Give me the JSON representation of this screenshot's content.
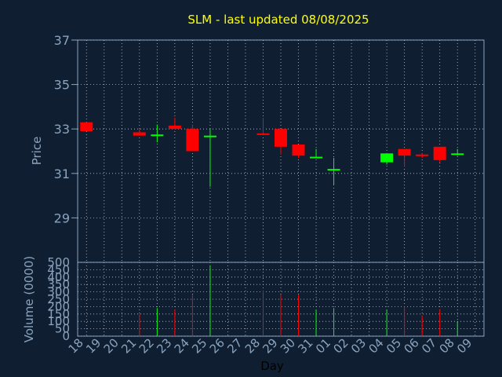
{
  "chart_data": [
    {
      "type": "candlestick",
      "title": "SLM - last updated 08/08/2025",
      "ylabel": "Price",
      "xlabel": "Day",
      "ylim": [
        27,
        37
      ],
      "yticks": [
        "37",
        "35",
        "33",
        "31",
        "29"
      ],
      "grid": true,
      "x": [
        "18",
        "19",
        "20",
        "21",
        "22",
        "23",
        "24",
        "25",
        "26",
        "27",
        "28",
        "29",
        "30",
        "31",
        "01",
        "02",
        "03",
        "04",
        "05",
        "06",
        "07",
        "08",
        "09"
      ],
      "candles": [
        {
          "x": "18",
          "open": 32.9,
          "high": 33.3,
          "low": 32.9,
          "close": 33.3,
          "color": "#ff0000"
        },
        {
          "x": "21",
          "open": 32.7,
          "high": 33.0,
          "low": 32.7,
          "close": 32.85,
          "color": "#ff0000"
        },
        {
          "x": "22",
          "open": 32.75,
          "high": 33.2,
          "low": 32.4,
          "close": 32.75,
          "color": "#00ff00"
        },
        {
          "x": "23",
          "open": 33.0,
          "high": 33.5,
          "low": 33.0,
          "close": 33.15,
          "color": "#ff0000"
        },
        {
          "x": "24",
          "open": 32.0,
          "high": 33.2,
          "low": 32.0,
          "close": 33.0,
          "color": "#ff0000"
        },
        {
          "x": "25",
          "open": 32.7,
          "high": 33.0,
          "low": 30.4,
          "close": 32.7,
          "color": "#00ff00"
        },
        {
          "x": "28",
          "open": 32.8,
          "high": 33.5,
          "low": 32.8,
          "close": 32.8,
          "color": "#ff0000"
        },
        {
          "x": "29",
          "open": 32.2,
          "high": 33.0,
          "low": 31.85,
          "close": 33.0,
          "color": "#ff0000"
        },
        {
          "x": "30",
          "open": 31.8,
          "high": 32.3,
          "low": 31.7,
          "close": 32.3,
          "color": "#ff0000"
        },
        {
          "x": "31",
          "open": 31.75,
          "high": 32.1,
          "low": 31.7,
          "close": 31.75,
          "color": "#00ff00"
        },
        {
          "x": "01",
          "open": 31.2,
          "high": 31.7,
          "low": 30.5,
          "close": 31.2,
          "color": "#00ff00"
        },
        {
          "x": "04",
          "open": 31.5,
          "high": 31.9,
          "low": 31.4,
          "close": 31.9,
          "color": "#00ff00"
        },
        {
          "x": "05",
          "open": 31.8,
          "high": 32.1,
          "low": 31.3,
          "close": 32.1,
          "color": "#ff0000"
        },
        {
          "x": "06",
          "open": 31.8,
          "high": 31.9,
          "low": 31.7,
          "close": 31.85,
          "color": "#ff0000"
        },
        {
          "x": "07",
          "open": 31.6,
          "high": 32.2,
          "low": 31.5,
          "close": 32.2,
          "color": "#ff0000"
        },
        {
          "x": "08",
          "open": 31.85,
          "high": 32.1,
          "low": 31.8,
          "close": 31.9,
          "color": "#00ff00"
        }
      ]
    },
    {
      "type": "bar",
      "ylabel": "Volume (0000)",
      "ylim": [
        0,
        500
      ],
      "yticks": [
        "500",
        "450",
        "400",
        "350",
        "300",
        "250",
        "200",
        "150",
        "100",
        "50",
        "0"
      ],
      "grid": true,
      "x": [
        "18",
        "19",
        "20",
        "21",
        "22",
        "23",
        "24",
        "25",
        "26",
        "27",
        "28",
        "29",
        "30",
        "31",
        "01",
        "02",
        "03",
        "04",
        "05",
        "06",
        "07",
        "08",
        "09"
      ],
      "volumes": [
        {
          "x": "21",
          "value": 150,
          "color": "#ff0000"
        },
        {
          "x": "22",
          "value": 190,
          "color": "#00ff00"
        },
        {
          "x": "23",
          "value": 180,
          "color": "#ff0000"
        },
        {
          "x": "24",
          "value": 280,
          "color": "#ff0000"
        },
        {
          "x": "25",
          "value": 480,
          "color": "#00ff00"
        },
        {
          "x": "28",
          "value": 310,
          "color": "#ff0000"
        },
        {
          "x": "29",
          "value": 280,
          "color": "#ff0000"
        },
        {
          "x": "30",
          "value": 280,
          "color": "#ff0000"
        },
        {
          "x": "31",
          "value": 180,
          "color": "#00ff00"
        },
        {
          "x": "01",
          "value": 190,
          "color": "#00ff00"
        },
        {
          "x": "04",
          "value": 180,
          "color": "#00ff00"
        },
        {
          "x": "05",
          "value": 200,
          "color": "#ff0000"
        },
        {
          "x": "06",
          "value": 140,
          "color": "#ff0000"
        },
        {
          "x": "07",
          "value": 180,
          "color": "#ff0000"
        },
        {
          "x": "08",
          "value": 100,
          "color": "#00ff00"
        }
      ]
    }
  ],
  "colors": {
    "background": "#0f1f31",
    "frame": "#8aa3be",
    "grid": "#b8c6d6",
    "title": "#ffff00",
    "up": "#00ff00",
    "down": "#ff0000"
  }
}
